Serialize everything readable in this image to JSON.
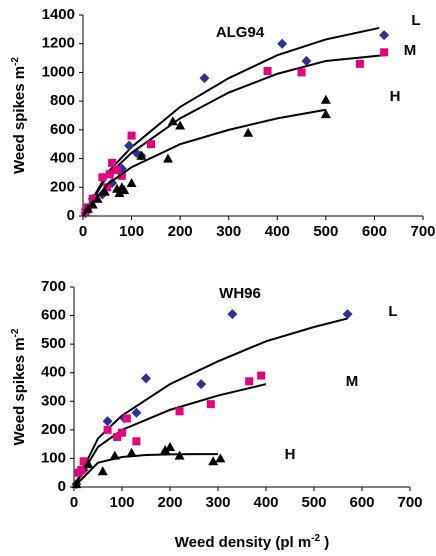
{
  "chart_data": [
    {
      "type": "scatter",
      "annotation": "ALG94",
      "ylabel_parts": [
        "Weed spikes m",
        "-2"
      ],
      "xlim": [
        0,
        700
      ],
      "xticks": [
        0,
        100,
        200,
        300,
        400,
        500,
        600,
        700
      ],
      "ylim": [
        0,
        1400
      ],
      "yticks": [
        0,
        200,
        400,
        600,
        800,
        1000,
        1200,
        1400
      ],
      "grid": false,
      "series": [
        {
          "name": "L",
          "color": "#2e3192",
          "marker": "diamond",
          "x": [
            5,
            20,
            40,
            60,
            80,
            95,
            110,
            120,
            250,
            410,
            460,
            620
          ],
          "values": [
            20,
            120,
            150,
            230,
            330,
            490,
            440,
            420,
            960,
            1200,
            1080,
            1260
          ],
          "fit_x": [
            0,
            50,
            100,
            200,
            300,
            400,
            500,
            610
          ],
          "fit_values": [
            0,
            300,
            480,
            760,
            960,
            1120,
            1230,
            1310
          ]
        },
        {
          "name": "M",
          "color": "#e6007e",
          "marker": "square",
          "x": [
            5,
            10,
            20,
            40,
            50,
            55,
            60,
            70,
            80,
            100,
            140,
            380,
            450,
            570,
            620
          ],
          "values": [
            30,
            60,
            120,
            270,
            200,
            290,
            370,
            320,
            280,
            560,
            500,
            1010,
            1000,
            1060,
            1140
          ],
          "fit_x": [
            0,
            50,
            100,
            200,
            300,
            400,
            500,
            620
          ],
          "fit_values": [
            0,
            280,
            440,
            680,
            860,
            990,
            1080,
            1120
          ]
        },
        {
          "name": "H",
          "color": "#000000",
          "marker": "triangle",
          "x": [
            10,
            20,
            30,
            45,
            70,
            75,
            80,
            85,
            100,
            120,
            175,
            185,
            200,
            340,
            500,
            500
          ],
          "values": [
            50,
            80,
            120,
            170,
            190,
            160,
            200,
            180,
            230,
            420,
            400,
            660,
            630,
            580,
            810,
            710
          ],
          "fit_x": [
            0,
            50,
            100,
            200,
            300,
            400,
            500
          ],
          "fit_values": [
            0,
            220,
            340,
            500,
            600,
            680,
            740
          ]
        }
      ]
    },
    {
      "type": "scatter",
      "annotation": "WH96",
      "ylabel_parts": [
        "Weed spikes m",
        "-2"
      ],
      "xlabel_parts": [
        "Weed density (pl m",
        "-2",
        " )"
      ],
      "xlim": [
        0,
        700
      ],
      "xticks": [
        0,
        100,
        200,
        300,
        400,
        500,
        600,
        700
      ],
      "ylim": [
        0,
        700
      ],
      "yticks": [
        0,
        100,
        200,
        300,
        400,
        500,
        600,
        700
      ],
      "grid": false,
      "series": [
        {
          "name": "L",
          "color": "#2e3192",
          "marker": "diamond",
          "x": [
            5,
            20,
            70,
            105,
            130,
            150,
            265,
            330,
            570
          ],
          "values": [
            10,
            60,
            230,
            240,
            260,
            380,
            360,
            605,
            605
          ],
          "fit_x": [
            0,
            50,
            100,
            200,
            300,
            400,
            500,
            570
          ],
          "fit_values": [
            0,
            170,
            250,
            360,
            440,
            510,
            560,
            590
          ]
        },
        {
          "name": "M",
          "color": "#e6007e",
          "marker": "square",
          "x": [
            10,
            15,
            20,
            70,
            90,
            100,
            110,
            130,
            220,
            285,
            365,
            390
          ],
          "values": [
            50,
            60,
            90,
            200,
            175,
            190,
            240,
            160,
            265,
            290,
            370,
            390
          ],
          "fit_x": [
            0,
            50,
            100,
            200,
            300,
            400
          ],
          "fit_values": [
            0,
            140,
            200,
            270,
            320,
            360
          ]
        },
        {
          "name": "H",
          "color": "#000000",
          "marker": "triangle",
          "x": [
            5,
            30,
            60,
            85,
            120,
            190,
            200,
            220,
            290,
            305
          ],
          "values": [
            10,
            80,
            55,
            110,
            120,
            130,
            140,
            110,
            90,
            100
          ],
          "fit_x": [
            0,
            50,
            100,
            150,
            200,
            250,
            300
          ],
          "fit_values": [
            0,
            85,
            105,
            112,
            114,
            115,
            115
          ]
        }
      ]
    }
  ]
}
